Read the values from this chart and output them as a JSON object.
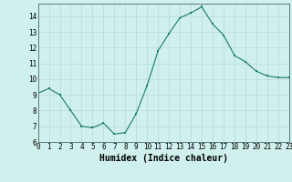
{
  "x": [
    0,
    1,
    2,
    3,
    4,
    5,
    6,
    7,
    8,
    9,
    10,
    11,
    12,
    13,
    14,
    15,
    16,
    17,
    18,
    19,
    20,
    21,
    22,
    23
  ],
  "y": [
    9.1,
    9.4,
    9.0,
    8.0,
    7.0,
    6.9,
    7.2,
    6.5,
    6.6,
    7.8,
    9.6,
    11.8,
    12.9,
    13.9,
    14.2,
    14.6,
    13.5,
    12.8,
    11.5,
    11.1,
    10.5,
    10.2,
    10.1,
    10.1
  ],
  "xlabel": "Humidex (Indice chaleur)",
  "ylim": [
    6,
    14.8
  ],
  "xlim": [
    0,
    23
  ],
  "yticks": [
    6,
    7,
    8,
    9,
    10,
    11,
    12,
    13,
    14
  ],
  "xticks": [
    0,
    1,
    2,
    3,
    4,
    5,
    6,
    7,
    8,
    9,
    10,
    11,
    12,
    13,
    14,
    15,
    16,
    17,
    18,
    19,
    20,
    21,
    22,
    23
  ],
  "line_color": "#1a7a6e",
  "marker_color": "#1a7a6e",
  "bg_color": "#cff0ec",
  "grid_color": "#b8dbd7",
  "spine_color": "#5a7a78",
  "tick_label_fontsize": 5.5,
  "xlabel_fontsize": 7.0
}
